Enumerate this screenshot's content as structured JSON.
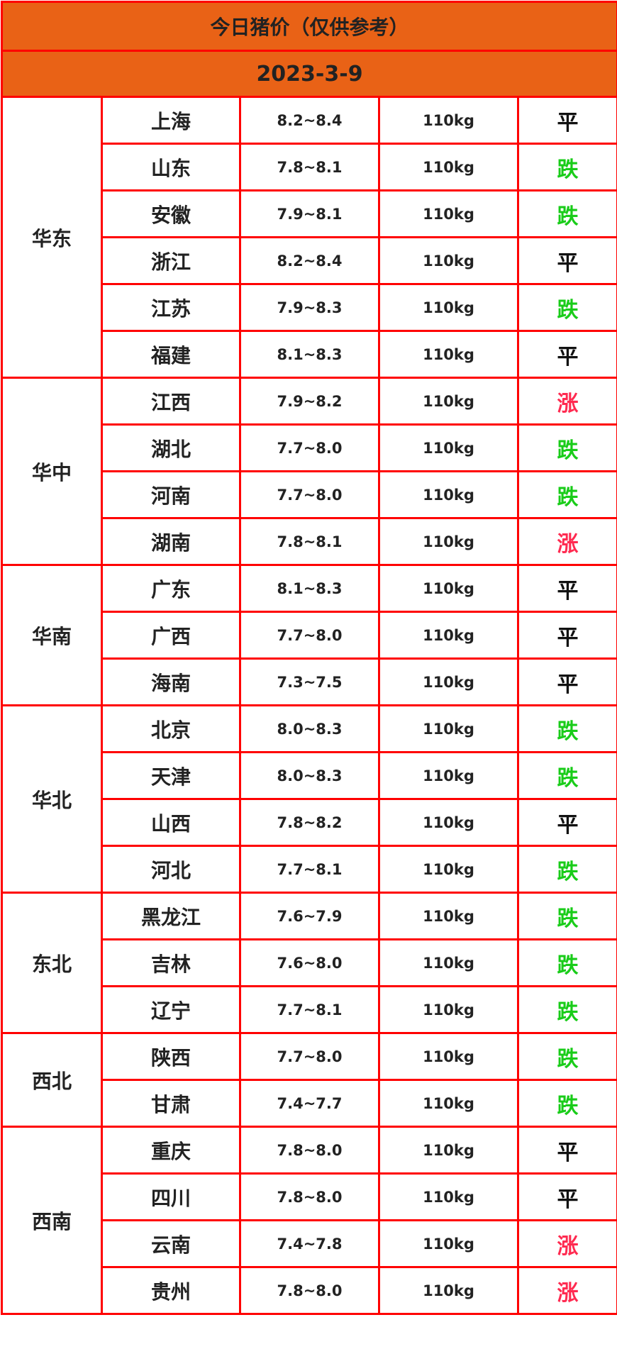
{
  "title": "今日猪价（仅供参考）",
  "date": "2023-3-9",
  "trend_colors": {
    "平": "#111111",
    "跌": "#19cc19",
    "涨": "#ff2a50"
  },
  "regions": [
    {
      "name": "华东",
      "rows": [
        {
          "province": "上海",
          "price": "8.2~8.4",
          "weight": "110kg",
          "trend": "平"
        },
        {
          "province": "山东",
          "price": "7.8~8.1",
          "weight": "110kg",
          "trend": "跌"
        },
        {
          "province": "安徽",
          "price": "7.9~8.1",
          "weight": "110kg",
          "trend": "跌"
        },
        {
          "province": "浙江",
          "price": "8.2~8.4",
          "weight": "110kg",
          "trend": "平"
        },
        {
          "province": "江苏",
          "price": "7.9~8.3",
          "weight": "110kg",
          "trend": "跌"
        },
        {
          "province": "福建",
          "price": "8.1~8.3",
          "weight": "110kg",
          "trend": "平"
        }
      ]
    },
    {
      "name": "华中",
      "rows": [
        {
          "province": "江西",
          "price": "7.9~8.2",
          "weight": "110kg",
          "trend": "涨"
        },
        {
          "province": "湖北",
          "price": "7.7~8.0",
          "weight": "110kg",
          "trend": "跌"
        },
        {
          "province": "河南",
          "price": "7.7~8.0",
          "weight": "110kg",
          "trend": "跌"
        },
        {
          "province": "湖南",
          "price": "7.8~8.1",
          "weight": "110kg",
          "trend": "涨"
        }
      ]
    },
    {
      "name": "华南",
      "rows": [
        {
          "province": "广东",
          "price": "8.1~8.3",
          "weight": "110kg",
          "trend": "平"
        },
        {
          "province": "广西",
          "price": "7.7~8.0",
          "weight": "110kg",
          "trend": "平"
        },
        {
          "province": "海南",
          "price": "7.3~7.5",
          "weight": "110kg",
          "trend": "平"
        }
      ]
    },
    {
      "name": "华北",
      "rows": [
        {
          "province": "北京",
          "price": "8.0~8.3",
          "weight": "110kg",
          "trend": "跌"
        },
        {
          "province": "天津",
          "price": "8.0~8.3",
          "weight": "110kg",
          "trend": "跌"
        },
        {
          "province": "山西",
          "price": "7.8~8.2",
          "weight": "110kg",
          "trend": "平"
        },
        {
          "province": "河北",
          "price": "7.7~8.1",
          "weight": "110kg",
          "trend": "跌"
        }
      ]
    },
    {
      "name": "东北",
      "rows": [
        {
          "province": "黑龙江",
          "price": "7.6~7.9",
          "weight": "110kg",
          "trend": "跌"
        },
        {
          "province": "吉林",
          "price": "7.6~8.0",
          "weight": "110kg",
          "trend": "跌"
        },
        {
          "province": "辽宁",
          "price": "7.7~8.1",
          "weight": "110kg",
          "trend": "跌"
        }
      ]
    },
    {
      "name": "西北",
      "rows": [
        {
          "province": "陕西",
          "price": "7.7~8.0",
          "weight": "110kg",
          "trend": "跌"
        },
        {
          "province": "甘肃",
          "price": "7.4~7.7",
          "weight": "110kg",
          "trend": "跌"
        }
      ]
    },
    {
      "name": "西南",
      "rows": [
        {
          "province": "重庆",
          "price": "7.8~8.0",
          "weight": "110kg",
          "trend": "平"
        },
        {
          "province": "四川",
          "price": "7.8~8.0",
          "weight": "110kg",
          "trend": "平"
        },
        {
          "province": "云南",
          "price": "7.4~7.8",
          "weight": "110kg",
          "trend": "涨"
        },
        {
          "province": "贵州",
          "price": "7.8~8.0",
          "weight": "110kg",
          "trend": "涨"
        }
      ]
    }
  ]
}
